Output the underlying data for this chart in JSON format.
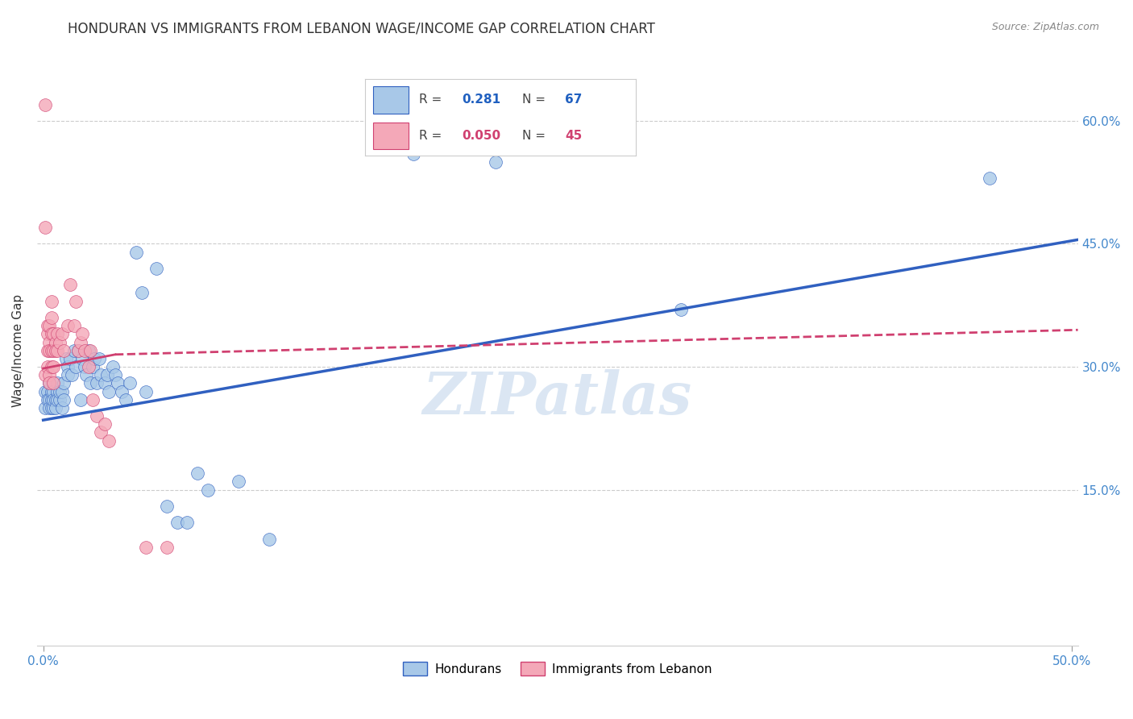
{
  "title": "HONDURAN VS IMMIGRANTS FROM LEBANON WAGE/INCOME GAP CORRELATION CHART",
  "source": "Source: ZipAtlas.com",
  "ylabel": "Wage/Income Gap",
  "ytick_labels": [
    "15.0%",
    "30.0%",
    "45.0%",
    "60.0%"
  ],
  "ytick_values": [
    0.15,
    0.3,
    0.45,
    0.6
  ],
  "xtick_labels": [
    "0.0%",
    "50.0%"
  ],
  "xtick_values": [
    0.0,
    0.5
  ],
  "xlim": [
    -0.003,
    0.503
  ],
  "ylim": [
    -0.04,
    0.68
  ],
  "blue_R": "0.281",
  "blue_N": "67",
  "pink_R": "0.050",
  "pink_N": "45",
  "blue_color": "#a8c8e8",
  "pink_color": "#f4a8b8",
  "blue_line_color": "#3060c0",
  "pink_line_color": "#d04070",
  "blue_label": "Hondurans",
  "pink_label": "Immigrants from Lebanon",
  "watermark": "ZIPatlas",
  "blue_x": [
    0.001,
    0.001,
    0.002,
    0.002,
    0.003,
    0.003,
    0.003,
    0.004,
    0.004,
    0.004,
    0.005,
    0.005,
    0.005,
    0.006,
    0.006,
    0.007,
    0.007,
    0.007,
    0.008,
    0.008,
    0.009,
    0.009,
    0.01,
    0.01,
    0.011,
    0.012,
    0.012,
    0.013,
    0.014,
    0.015,
    0.016,
    0.017,
    0.018,
    0.019,
    0.02,
    0.021,
    0.022,
    0.023,
    0.024,
    0.025,
    0.026,
    0.027,
    0.028,
    0.03,
    0.031,
    0.032,
    0.034,
    0.035,
    0.036,
    0.038,
    0.04,
    0.042,
    0.045,
    0.048,
    0.05,
    0.055,
    0.06,
    0.065,
    0.07,
    0.075,
    0.08,
    0.095,
    0.11,
    0.18,
    0.22,
    0.31,
    0.46
  ],
  "blue_y": [
    0.27,
    0.25,
    0.27,
    0.26,
    0.26,
    0.25,
    0.28,
    0.26,
    0.27,
    0.25,
    0.25,
    0.27,
    0.26,
    0.26,
    0.25,
    0.27,
    0.26,
    0.28,
    0.26,
    0.27,
    0.27,
    0.25,
    0.26,
    0.28,
    0.31,
    0.3,
    0.29,
    0.31,
    0.29,
    0.32,
    0.3,
    0.32,
    0.26,
    0.31,
    0.3,
    0.29,
    0.32,
    0.28,
    0.3,
    0.31,
    0.28,
    0.31,
    0.29,
    0.28,
    0.29,
    0.27,
    0.3,
    0.29,
    0.28,
    0.27,
    0.26,
    0.28,
    0.44,
    0.39,
    0.27,
    0.42,
    0.13,
    0.11,
    0.11,
    0.17,
    0.15,
    0.16,
    0.09,
    0.56,
    0.55,
    0.37,
    0.53
  ],
  "pink_x": [
    0.001,
    0.001,
    0.001,
    0.002,
    0.002,
    0.002,
    0.002,
    0.003,
    0.003,
    0.003,
    0.003,
    0.003,
    0.004,
    0.004,
    0.004,
    0.004,
    0.004,
    0.005,
    0.005,
    0.005,
    0.005,
    0.006,
    0.006,
    0.007,
    0.007,
    0.008,
    0.009,
    0.01,
    0.012,
    0.013,
    0.015,
    0.016,
    0.017,
    0.018,
    0.019,
    0.02,
    0.022,
    0.023,
    0.024,
    0.026,
    0.028,
    0.03,
    0.032,
    0.05,
    0.06
  ],
  "pink_y": [
    0.62,
    0.47,
    0.29,
    0.32,
    0.3,
    0.34,
    0.35,
    0.35,
    0.33,
    0.32,
    0.29,
    0.28,
    0.38,
    0.36,
    0.34,
    0.32,
    0.3,
    0.34,
    0.32,
    0.3,
    0.28,
    0.33,
    0.32,
    0.34,
    0.32,
    0.33,
    0.34,
    0.32,
    0.35,
    0.4,
    0.35,
    0.38,
    0.32,
    0.33,
    0.34,
    0.32,
    0.3,
    0.32,
    0.26,
    0.24,
    0.22,
    0.23,
    0.21,
    0.08,
    0.08
  ],
  "grid_color": "#cccccc",
  "background_color": "#ffffff",
  "title_fontsize": 12,
  "axis_label_fontsize": 11,
  "tick_fontsize": 11,
  "blue_line_start_x": 0.0,
  "blue_line_start_y": 0.235,
  "blue_line_end_x": 0.503,
  "blue_line_end_y": 0.455,
  "pink_line_solid_start_x": 0.0,
  "pink_line_solid_start_y": 0.298,
  "pink_line_solid_end_x": 0.035,
  "pink_line_solid_end_y": 0.315,
  "pink_line_dash_start_x": 0.035,
  "pink_line_dash_start_y": 0.315,
  "pink_line_dash_end_x": 0.503,
  "pink_line_dash_end_y": 0.345
}
